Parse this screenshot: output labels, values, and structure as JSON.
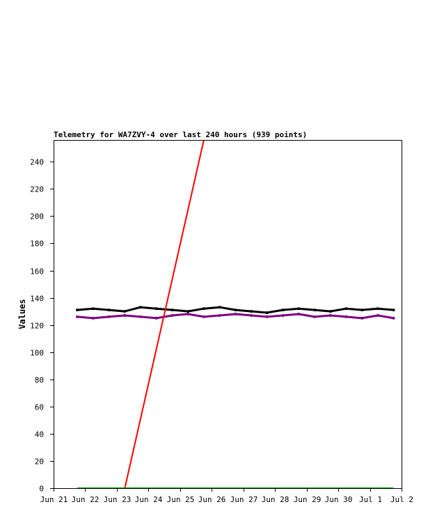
{
  "chart_data": {
    "type": "line",
    "title": "Telemetry for WA7ZVY-4 over last 240 hours (939 points)",
    "xlabel": "",
    "ylabel": "Values",
    "ylim": [
      0,
      256
    ],
    "xlim": [
      "2024-06-21T00:00",
      "2024-07-02T00:00"
    ],
    "x_ticks": [
      "Jun 21",
      "Jun 22",
      "Jun 23",
      "Jun 24",
      "Jun 25",
      "Jun 26",
      "Jun 27",
      "Jun 28",
      "Jun 29",
      "Jun 30",
      "Jul 1",
      "Jul 2"
    ],
    "y_ticks": [
      0,
      20,
      40,
      60,
      80,
      100,
      120,
      140,
      160,
      180,
      200,
      220,
      240
    ],
    "grid": false,
    "legend": "none",
    "colors": {
      "axes": "#000000",
      "background": "#ffffff"
    },
    "series": [
      {
        "color": "#000000",
        "x": [
          "2024-06-21T18:00",
          "2024-06-22T06:00",
          "2024-06-22T18:00",
          "2024-06-23T06:00",
          "2024-06-23T18:00",
          "2024-06-24T06:00",
          "2024-06-24T18:00",
          "2024-06-25T06:00",
          "2024-06-25T18:00",
          "2024-06-26T06:00",
          "2024-06-26T18:00",
          "2024-06-27T06:00",
          "2024-06-27T18:00",
          "2024-06-28T06:00",
          "2024-06-28T18:00",
          "2024-06-29T06:00",
          "2024-06-29T18:00",
          "2024-06-30T06:00",
          "2024-06-30T18:00",
          "2024-07-01T06:00",
          "2024-07-01T18:00"
        ],
        "values": [
          131,
          132,
          131,
          130,
          133,
          132,
          131,
          130,
          132,
          133,
          131,
          130,
          129,
          131,
          132,
          131,
          130,
          132,
          131,
          132,
          131
        ]
      },
      {
        "color": "#800080",
        "x": [
          "2024-06-21T18:00",
          "2024-06-22T06:00",
          "2024-06-22T18:00",
          "2024-06-23T06:00",
          "2024-06-23T18:00",
          "2024-06-24T06:00",
          "2024-06-24T18:00",
          "2024-06-25T06:00",
          "2024-06-25T18:00",
          "2024-06-26T06:00",
          "2024-06-26T18:00",
          "2024-06-27T06:00",
          "2024-06-27T18:00",
          "2024-06-28T06:00",
          "2024-06-28T18:00",
          "2024-06-29T06:00",
          "2024-06-29T18:00",
          "2024-06-30T06:00",
          "2024-06-30T18:00",
          "2024-07-01T06:00",
          "2024-07-01T18:00"
        ],
        "values": [
          126,
          125,
          126,
          127,
          126,
          125,
          127,
          128,
          126,
          127,
          128,
          127,
          126,
          127,
          128,
          126,
          127,
          126,
          125,
          127,
          125
        ]
      },
      {
        "color": "#ff0000",
        "x": [
          "2024-06-23T06:00",
          "2024-06-25T18:00"
        ],
        "values": [
          0,
          256
        ]
      },
      {
        "color": "#00aa00",
        "x": [
          "2024-06-21T18:00",
          "2024-07-01T18:00"
        ],
        "values": [
          0,
          0
        ]
      }
    ]
  }
}
